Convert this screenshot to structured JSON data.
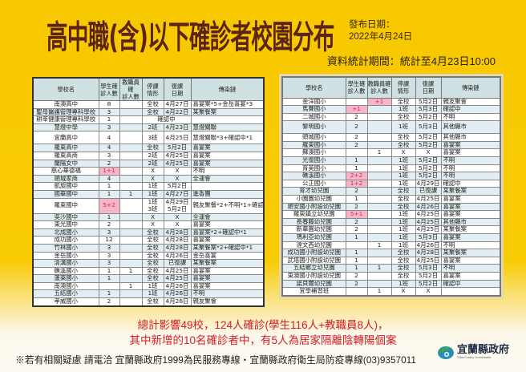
{
  "title": "高中職(含)以下確診者校園分布",
  "publish_label": "發布日期：",
  "publish_date": "2022年4月24日",
  "period": "資料統計期間：統計至4月23日10:00",
  "columns": [
    "學校名",
    "學生確\n診人數",
    "教職員確\n診人數",
    "停課\n情形",
    "復課\n日期",
    "傳染鏈"
  ],
  "colors": {
    "background": "#f8c800",
    "title": "#5a2418",
    "highlight": "#f5b6c9",
    "summary": "#d0202a"
  },
  "left_rows": [
    {
      "school": "南澳高中",
      "students": "8",
      "staff": "",
      "stop": "全校",
      "resume": "4月27日",
      "chain": "喜宴案*5+金岳喜宴*3"
    },
    {
      "school": "聖母醫護管理專科學校",
      "students": "3",
      "staff": "",
      "stop": "全校",
      "resume": "4月22日",
      "chain": "某聚餐案"
    },
    {
      "school": "耕莘健康管理專科學校",
      "students": "1",
      "staff": "",
      "stop": "確認中",
      "resume": null,
      "chain": ""
    },
    {
      "school": "慧燈中學",
      "students": "3",
      "staff": "",
      "stop": "2班",
      "resume": "4月23日",
      "chain": "慧燈關聯"
    },
    {
      "school": "宜蘭高中",
      "students": "4",
      "staff": "",
      "stop": "3班",
      "resume": "4月25日",
      "chain": "慧燈關聯*3+確認中*1",
      "tall": true
    },
    {
      "school": "羅東高中",
      "students": "4",
      "staff": "",
      "stop": "全校",
      "resume": "5月2日",
      "chain": "喜宴案"
    },
    {
      "school": "羅東高商",
      "students": "3",
      "staff": "",
      "stop": "2班",
      "resume": "4月25日",
      "chain": "喜宴案"
    },
    {
      "school": "蘭陽女中",
      "students": "2",
      "staff": "",
      "stop": "2班",
      "resume": "4月25日",
      "chain": "喜宴案"
    },
    {
      "school": "慈心華德福",
      "students": "1+1",
      "staff": "",
      "stop": "X",
      "resume": "X",
      "chain": "不明",
      "hl": "students"
    },
    {
      "school": "頭城家商",
      "students": "4",
      "staff": "",
      "stop": "X",
      "resume": "X",
      "chain": "全運會"
    },
    {
      "school": "凱旋國中",
      "students": "1",
      "staff": "",
      "stop": "1班",
      "resume": "5月2日",
      "chain": ""
    },
    {
      "school": "國華國中",
      "students": "1",
      "staff": "1",
      "stop": "1班",
      "resume": "4月27日",
      "chain": "進香團"
    },
    {
      "school": "羅東國中",
      "students": "5+2",
      "staff": "",
      "stop": "1班\n3班",
      "resume": "4月29日\n5月2日",
      "chain": "親友聚餐*2+不明*1+確認中*4",
      "hl": "students",
      "tall": true
    },
    {
      "school": "吳沙國中",
      "students": "1",
      "staff": "",
      "stop": "X",
      "resume": "X",
      "chain": "全運會"
    },
    {
      "school": "東光國中",
      "students": "2",
      "staff": "",
      "stop": "X",
      "resume": "X",
      "chain": "喜宴案"
    },
    {
      "school": "北成國小",
      "students": "3",
      "staff": "",
      "stop": "全校",
      "resume": "4月28日",
      "chain": "喜宴案*2+確認中*1"
    },
    {
      "school": "成功國小",
      "students": "12",
      "staff": "",
      "stop": "全校",
      "resume": "4月28日",
      "chain": "喜宴案"
    },
    {
      "school": "竹林國小",
      "students": "3",
      "staff": "",
      "stop": "全校",
      "resume": "4月28日",
      "chain": "某聚餐案*2+確認中*1"
    },
    {
      "school": "金岳國小",
      "students": "3",
      "staff": "",
      "stop": "全校",
      "resume": "4月26日",
      "chain": "金岳喜宴"
    },
    {
      "school": "清溝國小",
      "students": "3",
      "staff": "",
      "stop": "全校",
      "resume": "已復課",
      "chain": "某聚餐案"
    },
    {
      "school": "礁溪國小",
      "students": "1",
      "staff": "1",
      "stop": "全校",
      "resume": "4月25日",
      "chain": "喜宴案"
    },
    {
      "school": "蓬萊國小",
      "students": "1",
      "staff": "",
      "stop": "全校",
      "resume": "4月25日",
      "chain": "喜宴案"
    },
    {
      "school": "南澳國小",
      "students": "",
      "staff": "1",
      "stop": "1班",
      "resume": "4月26日",
      "chain": "喜宴案"
    },
    {
      "school": "五結國小",
      "students": "1",
      "staff": "",
      "stop": "1班",
      "resume": "4月26日",
      "chain": "不明"
    },
    {
      "school": "孝威國小",
      "students": "2",
      "staff": "",
      "stop": "全校",
      "resume": "4月26日",
      "chain": "親友聚會"
    }
  ],
  "right_rows": [
    {
      "school": "金洋國小",
      "students": "",
      "staff": "+1",
      "stop": "全校",
      "resume": "5月2日",
      "chain": "親友聚會",
      "hl": "staff"
    },
    {
      "school": "馬賽國小",
      "students": "+1",
      "staff": "",
      "stop": "1班",
      "resume": "5月3日",
      "chain": "確認中",
      "hl": "students"
    },
    {
      "school": "二城國小",
      "students": "2",
      "staff": "",
      "stop": "全校",
      "resume": "5月2日",
      "chain": "不明"
    },
    {
      "school": "黎明國小",
      "students": "2",
      "staff": "",
      "stop": "1班",
      "resume": "5月3日",
      "chain": "其他縣市",
      "tall": true
    },
    {
      "school": "頭城國小",
      "students": "2",
      "staff": "",
      "stop": "全校",
      "resume": "5月2日",
      "chain": "其他縣市"
    },
    {
      "school": "羅東國小",
      "students": "2",
      "staff": "",
      "stop": "全校",
      "resume": "5月2日",
      "chain": "喜宴案"
    },
    {
      "school": "蘇澳國小",
      "students": "",
      "staff": "1",
      "stop": "X",
      "resume": "X",
      "chain": "喜宴案"
    },
    {
      "school": "光復國小",
      "students": "1",
      "staff": "",
      "stop": "1班",
      "resume": "5月2日",
      "chain": "不明"
    },
    {
      "school": "育英國小",
      "students": "1",
      "staff": "",
      "stop": "1班",
      "resume": "5月2日",
      "chain": "不明"
    },
    {
      "school": "礁溪國小",
      "students": "2+2",
      "staff": "",
      "stop": "1班",
      "resume": "5月2日",
      "chain": "不明",
      "hl": "students"
    },
    {
      "school": "公正國小",
      "students": "1+2",
      "staff": "",
      "stop": "1班",
      "resume": "4月29日",
      "chain": "確認中",
      "hl": "students"
    },
    {
      "school": "育才幼兒園",
      "students": "2",
      "staff": "",
      "stop": "全校",
      "resume": "已復課",
      "chain": "某聚餐案"
    },
    {
      "school": "小園園幼兒園",
      "students": "1",
      "staff": "",
      "stop": "全校",
      "resume": "4月25日",
      "chain": "喜宴案"
    },
    {
      "school": "順安國小附設幼兒園",
      "students": "2",
      "staff": "",
      "stop": "全校",
      "resume": "4月26日",
      "chain": "喜宴案"
    },
    {
      "school": "羅東鎮立幼兒園",
      "students": "5+1",
      "staff": "",
      "stop": "1班",
      "resume": "4月25日",
      "chain": "喜宴案",
      "hl": "students"
    },
    {
      "school": "長春藤幼兒園",
      "students": "2",
      "staff": "",
      "stop": "1班",
      "resume": "4月25日",
      "chain": "其他縣市"
    },
    {
      "school": "新華園幼兒園",
      "students": "2",
      "staff": "",
      "stop": "1班",
      "resume": "4月25日",
      "chain": "某聚餐案"
    },
    {
      "school": "瑪利亞幼兒園",
      "students": "1",
      "staff": "",
      "stop": "1班",
      "resume": "5月3日",
      "chain": "喜宴案"
    },
    {
      "school": "達文西幼兒園",
      "students": "",
      "staff": "1",
      "stop": "1班",
      "resume": "4月26日",
      "chain": "不明"
    },
    {
      "school": "成功國小附設幼兒園",
      "students": "1",
      "staff": "",
      "stop": "全校",
      "resume": "4月28日",
      "chain": "某聚餐案"
    },
    {
      "school": "武塔國小附設幼兒園",
      "students": "1",
      "staff": "",
      "stop": "全校",
      "resume": "4月25日",
      "chain": "喜宴案"
    },
    {
      "school": "五結鄉立幼兒園",
      "students": "1",
      "staff": "1",
      "stop": "全校",
      "resume": "5月3日",
      "chain": "不明"
    },
    {
      "school": "東澳國小附設幼兒園",
      "students": "2",
      "staff": "",
      "stop": "全校",
      "resume": "5月2日",
      "chain": "喜宴案"
    },
    {
      "school": "諾貝爾幼兒園",
      "students": "2",
      "staff": "",
      "stop": "1班",
      "resume": "5月2日",
      "chain": "確認中"
    },
    {
      "school": "宜學補習班",
      "students": "",
      "staff": "1",
      "stop": "X",
      "resume": "X",
      "chain": ""
    }
  ],
  "summary": [
    "總計影響49校，124人確診(學生116人+教職員8人)，",
    "其中新增的10名確診者中，有5人為居家隔離陰轉陽個案"
  ],
  "note": "※若有相關疑慮 請電洽  宜蘭縣政府1999為民服務專線・宜蘭縣政府衛生局防疫專線(03)9357011",
  "logo": {
    "name_zh": "宜蘭縣政府",
    "name_en": "Yilan County Government"
  }
}
